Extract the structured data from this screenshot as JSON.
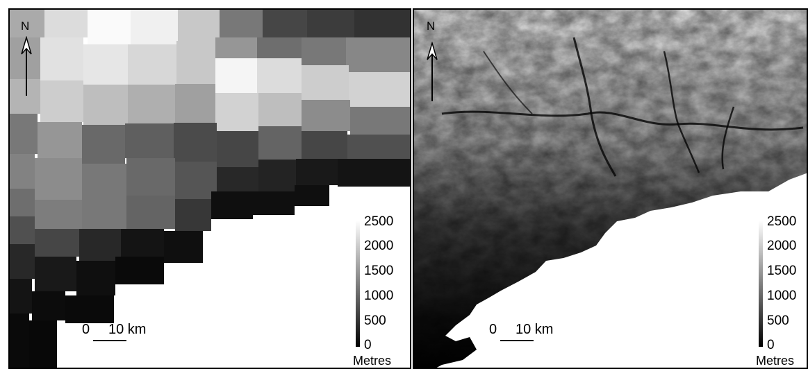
{
  "panels": [
    {
      "north_label": "N",
      "scale": {
        "zero_label": "0",
        "distance_label": "10 km"
      },
      "legend": {
        "ticks": [
          "2500",
          "2000",
          "1500",
          "1000",
          "500",
          "0"
        ],
        "unit": "Metres",
        "max": 2500,
        "min": 0
      }
    },
    {
      "north_label": "N",
      "scale": {
        "zero_label": "0",
        "distance_label": "10 km"
      },
      "legend": {
        "ticks": [
          "2500",
          "2000",
          "1500",
          "1000",
          "500",
          "0"
        ],
        "unit": "Metres",
        "max": 2500,
        "min": 0
      }
    }
  ],
  "colors": {
    "land_low": "#000000",
    "land_high": "#ffffff",
    "sea": "#ffffff",
    "frame": "#000000"
  }
}
